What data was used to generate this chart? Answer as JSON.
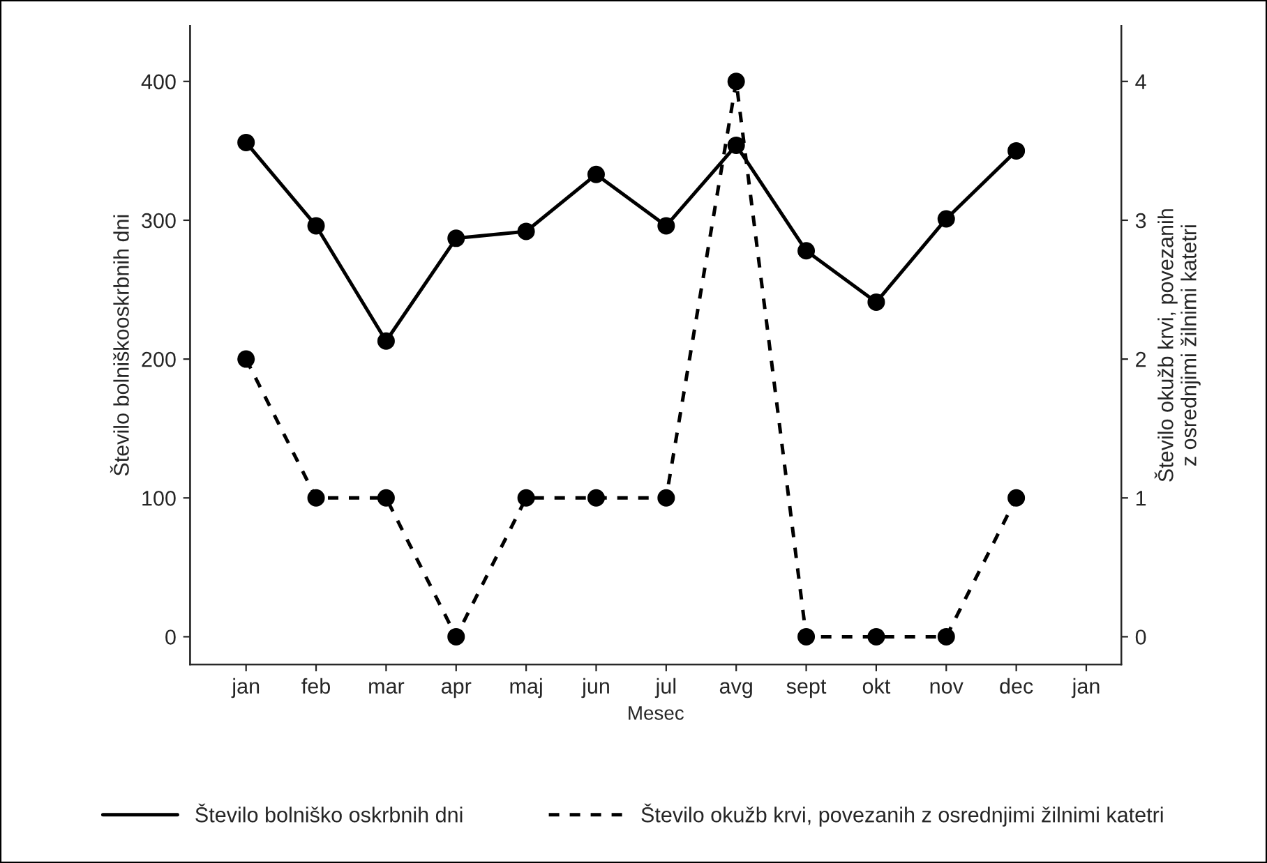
{
  "chart_data": {
    "type": "line",
    "xlabel": "Mesec",
    "ylabel": "Število bolniškooskrbnih dni",
    "y2label": "Število okužb krvi, povezanih\nz osrednjimi žilnimi katetri",
    "categories": [
      "jan",
      "feb",
      "mar",
      "apr",
      "maj",
      "jun",
      "jul",
      "avg",
      "sept",
      "okt",
      "nov",
      "dec",
      "jan"
    ],
    "series": [
      {
        "name": "Število bolniško oskrbnih dni",
        "color": "#000000",
        "line_style": "solid",
        "values": [
          356,
          296,
          213,
          287,
          292,
          333,
          296,
          354,
          278,
          241,
          301,
          350,
          null
        ]
      },
      {
        "name": "Število okužb krvi, povezanih z osrednjimi žilnimi katetri",
        "color": "#000000",
        "line_style": "dashed",
        "axis": "y2",
        "values": [
          2,
          1,
          1,
          0,
          1,
          1,
          1,
          4,
          0,
          0,
          0,
          1,
          null
        ]
      }
    ],
    "ylim": [
      -20,
      440
    ],
    "yticks": [
      0,
      100,
      200,
      300,
      400
    ],
    "y2lim": [
      -0.2,
      4.4
    ],
    "y2ticks": [
      0,
      1,
      2,
      3,
      4
    ],
    "marker": "circle",
    "legend": "bottom",
    "grid": false
  }
}
